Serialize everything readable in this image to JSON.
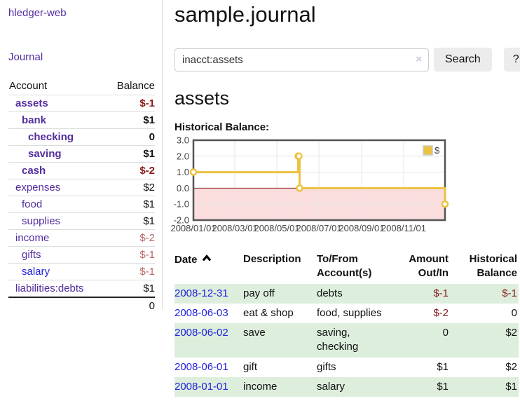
{
  "colors": {
    "link_purple": "#532d9e",
    "link_blue": "#2222dd",
    "negative_strong": "#8b1a1a",
    "negative_soft": "#bb6666",
    "row_green": "#ddeedd",
    "chart_series": "#edc240",
    "chart_negative_fill": "#fadddd",
    "chart_zero_line": "#8b1a1a",
    "button_gray": "#ececec"
  },
  "app": {
    "brand": "hledger-web",
    "nav_journal": "Journal"
  },
  "sidebar": {
    "accounts": {
      "headers": {
        "account": "Account",
        "balance": "Balance"
      },
      "rows": [
        {
          "name": "assets",
          "balance": "$-1",
          "depth": 1,
          "bold": true,
          "negative": true,
          "blue": false
        },
        {
          "name": "bank",
          "balance": "$1",
          "depth": 2,
          "bold": true,
          "negative": false,
          "blue": false
        },
        {
          "name": "checking",
          "balance": "0",
          "depth": 3,
          "bold": true,
          "negative": false,
          "blue": false
        },
        {
          "name": "saving",
          "balance": "$1",
          "depth": 3,
          "bold": true,
          "negative": false,
          "blue": false
        },
        {
          "name": "cash",
          "balance": "$-2",
          "depth": 2,
          "bold": true,
          "negative": true,
          "blue": false
        },
        {
          "name": "expenses",
          "balance": "$2",
          "depth": 1,
          "bold": false,
          "negative": false,
          "blue": false
        },
        {
          "name": "food",
          "balance": "$1",
          "depth": 2,
          "bold": false,
          "negative": false,
          "blue": false
        },
        {
          "name": "supplies",
          "balance": "$1",
          "depth": 2,
          "bold": false,
          "negative": false,
          "blue": false
        },
        {
          "name": "income",
          "balance": "$-2",
          "depth": 1,
          "bold": false,
          "negative": true,
          "blue": false
        },
        {
          "name": "gifts",
          "balance": "$-1",
          "depth": 2,
          "bold": false,
          "negative": true,
          "blue": false
        },
        {
          "name": "salary",
          "balance": "$-1",
          "depth": 2,
          "bold": false,
          "negative": true,
          "blue": true
        },
        {
          "name": "liabilities:debts",
          "balance": "$1",
          "depth": 1,
          "bold": false,
          "negative": false,
          "blue": false
        }
      ],
      "total": "0"
    }
  },
  "main": {
    "title": "sample.journal",
    "search": {
      "value": "inacct:assets",
      "clear_icon": "×",
      "button": "Search",
      "help": "?"
    },
    "heading": "assets",
    "chart_title": "Historical Balance:"
  },
  "chart_data": {
    "type": "line",
    "step": true,
    "title": "Historical Balance:",
    "legend": {
      "label": "$",
      "position": "top-right"
    },
    "xlim": [
      "2008-01-01",
      "2008-12-31"
    ],
    "ylim": [
      -2,
      3
    ],
    "x_ticks": [
      "2008/01/01",
      "2008/03/01",
      "2008/05/01",
      "2008/07/01",
      "2008/09/01",
      "2008/11/01"
    ],
    "y_ticks": [
      "3.0",
      "2.0",
      "1.0",
      "0.0",
      "-1.0",
      "-2.0"
    ],
    "grid": true,
    "series": [
      {
        "name": "$",
        "color": "#edc240",
        "points": [
          [
            "2008-01-01",
            1
          ],
          [
            "2008-06-01",
            2
          ],
          [
            "2008-06-02",
            2
          ],
          [
            "2008-06-03",
            0
          ],
          [
            "2008-12-31",
            -1
          ]
        ]
      }
    ]
  },
  "register": {
    "headers": {
      "date": "Date",
      "description": "Description",
      "accounts": "To/From Account(s)",
      "amount": "Amount Out/In",
      "balance": "Historical Balance"
    },
    "rows": [
      {
        "date": "2008-12-31",
        "description": "pay off",
        "accounts": "debts",
        "amount": "$-1",
        "balance": "$-1",
        "amount_negative": true,
        "balance_negative": true,
        "shaded": true
      },
      {
        "date": "2008-06-03",
        "description": "eat & shop",
        "accounts": "food, supplies",
        "amount": "$-2",
        "balance": "0",
        "amount_negative": true,
        "balance_negative": false,
        "shaded": false
      },
      {
        "date": "2008-06-02",
        "description": "save",
        "accounts": "saving, checking",
        "amount": "0",
        "balance": "$2",
        "amount_negative": false,
        "balance_negative": false,
        "shaded": true
      },
      {
        "date": "2008-06-01",
        "description": "gift",
        "accounts": "gifts",
        "amount": "$1",
        "balance": "$2",
        "amount_negative": false,
        "balance_negative": false,
        "shaded": false
      },
      {
        "date": "2008-01-01",
        "description": "income",
        "accounts": "salary",
        "amount": "$1",
        "balance": "$1",
        "amount_negative": false,
        "balance_negative": false,
        "shaded": true
      }
    ]
  }
}
